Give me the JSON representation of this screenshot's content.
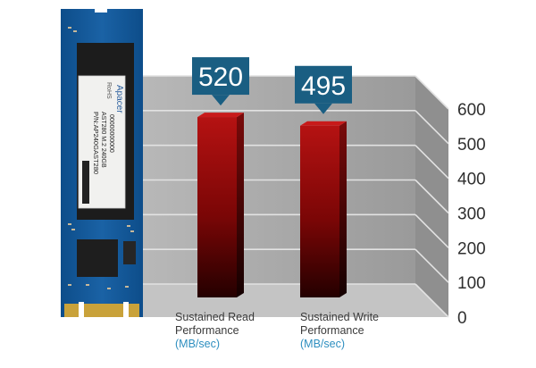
{
  "product": {
    "brand": "Apacer",
    "compliance": "RoHS",
    "part_number": "P/N:AP240GAST280",
    "model": "AST280 M.2 240GB",
    "serial": "00000000000"
  },
  "chart_data": {
    "type": "bar",
    "categories": [
      "Sustained Read Performance",
      "Sustained Write Performance"
    ],
    "units": "(MB/sec)",
    "values": [
      520,
      495
    ],
    "value_labels": [
      "520",
      "495"
    ],
    "ylim": [
      0,
      600
    ],
    "yticks": [
      "0",
      "100",
      "200",
      "300",
      "400",
      "500",
      "600"
    ],
    "grid": true,
    "colors": {
      "bar_top": "#b01010",
      "bar_bottom": "#2a0000",
      "callout": "#1a5e82",
      "wall": "#a9a9a9",
      "unit_text": "#2e8fc0"
    }
  }
}
